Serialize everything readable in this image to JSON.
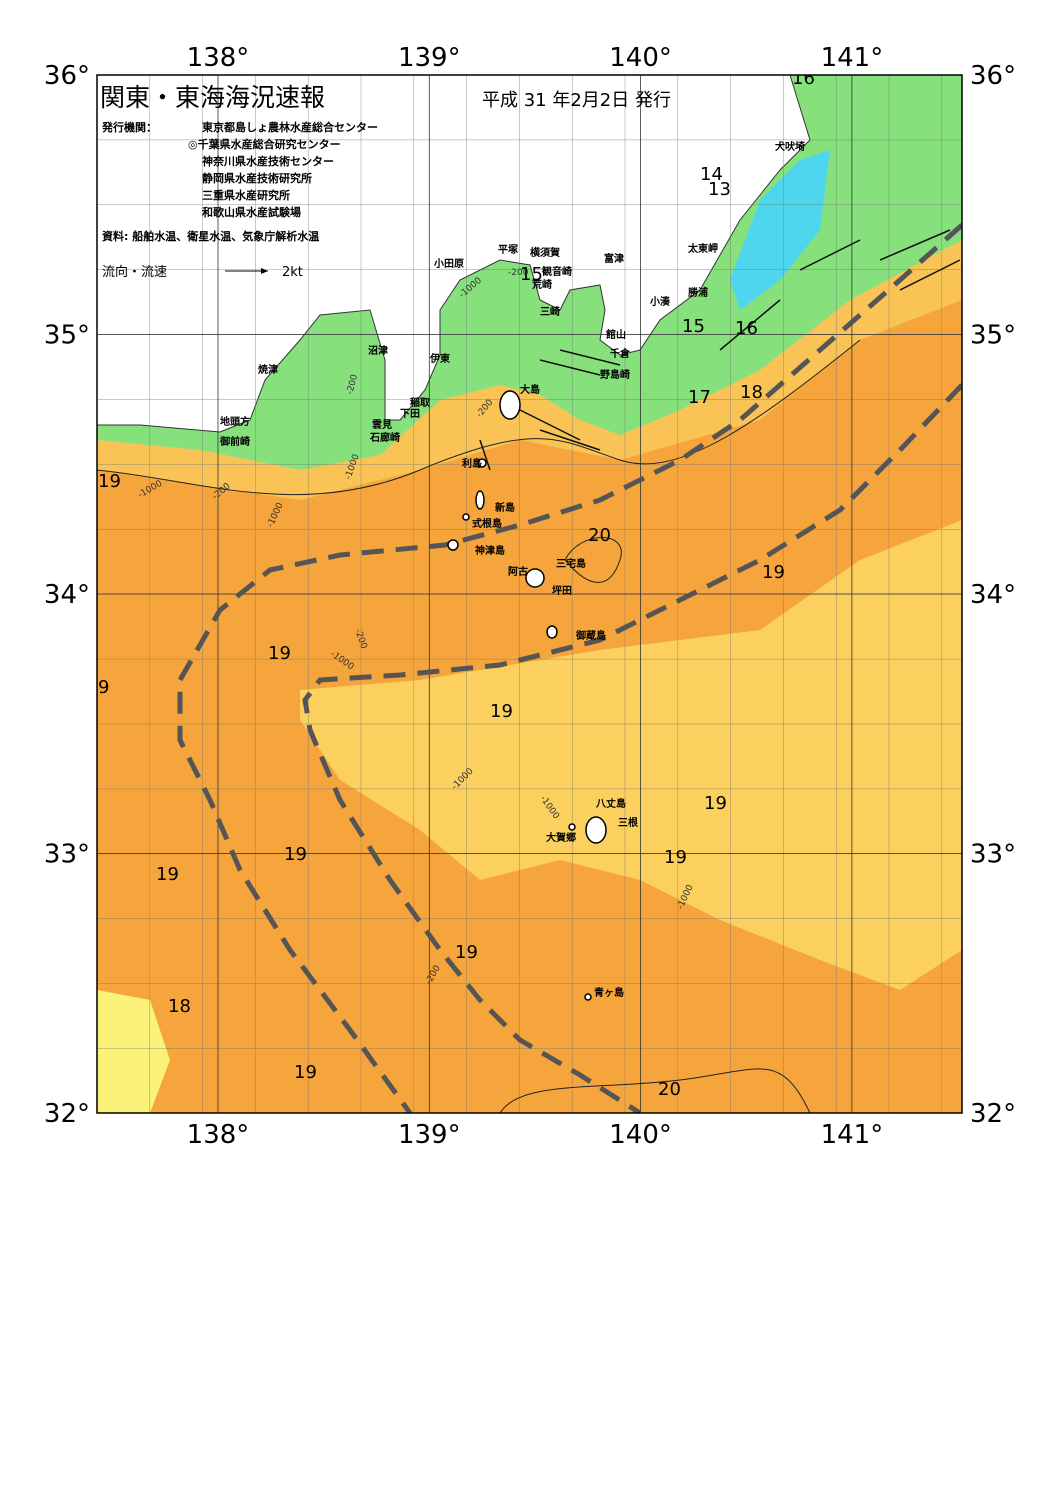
{
  "header": {
    "title": "関東・東海海況速報",
    "date": "平成 31 年2月2日 発行",
    "publisher_label": "発行機関：",
    "publishers": [
      "東京都島しょ農林水産総合センター",
      "◎千葉県水産総合研究センター",
      "神奈川県水産技術センター",
      "静岡県水産技術研究所",
      "三重県水産研究所",
      "和歌山県水産試験場"
    ],
    "sources": "資料: 船舶水温、衛星水温、気象庁解析水温"
  },
  "legend": {
    "label": "流向・流速",
    "unit": "2kt"
  },
  "axes": {
    "lon_ticks": [
      {
        "value": 138,
        "label": "138°"
      },
      {
        "value": 139,
        "label": "139°"
      },
      {
        "value": 140,
        "label": "140°"
      },
      {
        "value": 141,
        "label": "141°"
      }
    ],
    "lat_ticks": [
      {
        "value": 36,
        "label": "36°"
      },
      {
        "value": 35,
        "label": "35°"
      },
      {
        "value": 34,
        "label": "34°"
      },
      {
        "value": 33,
        "label": "33°"
      },
      {
        "value": 32,
        "label": "32°"
      }
    ]
  },
  "places": [
    "犬吠埼",
    "太東岬",
    "勝浦",
    "小湊",
    "館山",
    "千倉",
    "野島崎",
    "富津",
    "横須賀",
    "観音崎",
    "荒崎",
    "三崎",
    "平塚",
    "小田原",
    "沼津",
    "伊東",
    "焼津",
    "稲取",
    "下田",
    "雲見",
    "石廊崎",
    "地頭方",
    "御前崎",
    "大島",
    "利島",
    "新島",
    "式根島",
    "神津島",
    "阿古",
    "三宅島",
    "坪田",
    "御蔵島",
    "八丈島",
    "三根",
    "大賀郷",
    "青ヶ島"
  ],
  "isotherm_labels": [
    16,
    14,
    13,
    15,
    15,
    16,
    17,
    18,
    19,
    20,
    19,
    19,
    9,
    19,
    19,
    19,
    19,
    19,
    19,
    18,
    19,
    20
  ],
  "depth_labels": [
    -200,
    -1000,
    -200,
    -1000,
    -200,
    -1000,
    -200,
    -1000,
    -1000,
    -200,
    -1000,
    -1000,
    -1000,
    -200
  ]
}
